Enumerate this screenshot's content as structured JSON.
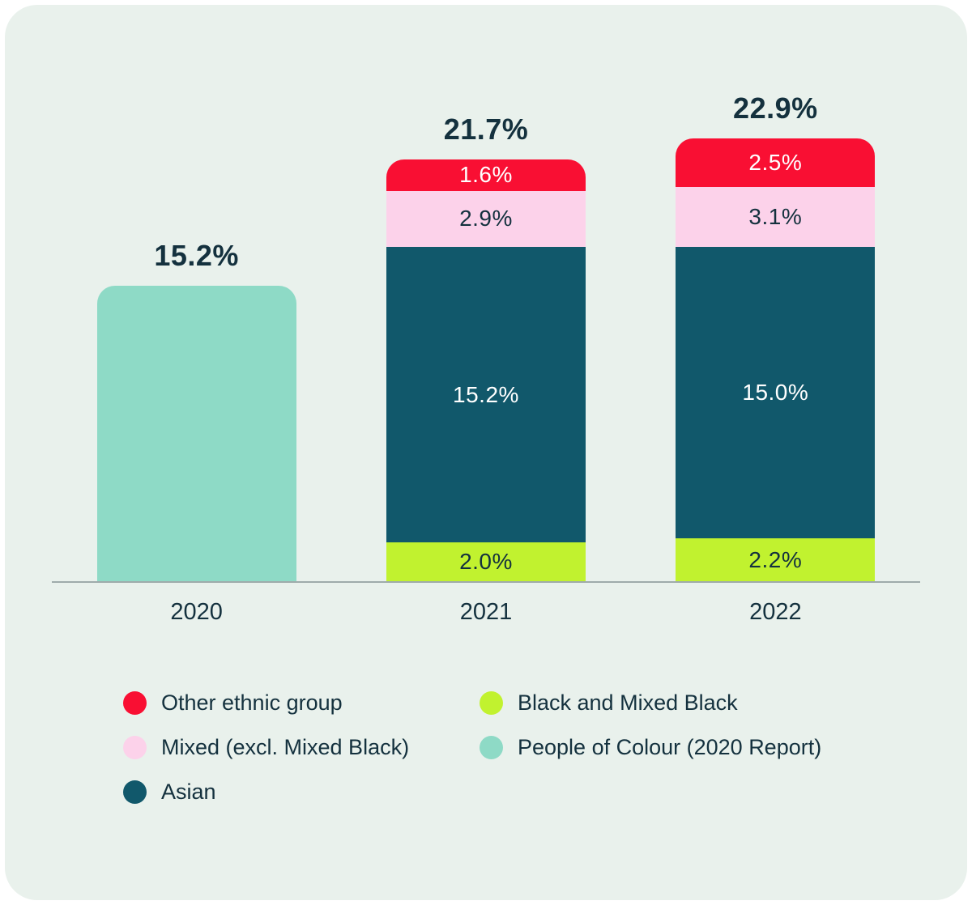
{
  "page": {
    "background_color": "#E9F1EC",
    "axis_color": "#9FABAB",
    "text_color": "#14313E"
  },
  "chart_data": {
    "type": "bar",
    "stacked": true,
    "title": "",
    "xlabel": "",
    "ylabel": "",
    "unit": "%",
    "ylim": [
      0,
      24
    ],
    "grid": false,
    "legend_position": "bottom",
    "categories": [
      "2020",
      "2021",
      "2022"
    ],
    "bars": [
      {
        "category": "2020",
        "total": 15.2,
        "total_label": "15.2%",
        "segments": [
          {
            "series": "People of Colour (2020 Report)",
            "value": 15.2,
            "label": "",
            "color": "#8EDAC6",
            "label_color": "dark"
          }
        ]
      },
      {
        "category": "2021",
        "total": 21.7,
        "total_label": "21.7%",
        "segments": [
          {
            "series": "Black and Mixed Black",
            "value": 2.0,
            "label": "2.0%",
            "color": "#C1F22F",
            "label_color": "dark"
          },
          {
            "series": "Asian",
            "value": 15.2,
            "label": "15.2%",
            "color": "#11586B",
            "label_color": "light"
          },
          {
            "series": "Mixed (excl. Mixed Black)",
            "value": 2.9,
            "label": "2.9%",
            "color": "#FCD2EA",
            "label_color": "dark"
          },
          {
            "series": "Other ethnic group",
            "value": 1.6,
            "label": "1.6%",
            "color": "#F90F33",
            "label_color": "light"
          }
        ]
      },
      {
        "category": "2022",
        "total": 22.9,
        "total_label": "22.9%",
        "segments": [
          {
            "series": "Black and Mixed Black",
            "value": 2.2,
            "label": "2.2%",
            "color": "#C1F22F",
            "label_color": "dark"
          },
          {
            "series": "Asian",
            "value": 15.0,
            "label": "15.0%",
            "color": "#11586B",
            "label_color": "light"
          },
          {
            "series": "Mixed (excl. Mixed Black)",
            "value": 3.1,
            "label": "3.1%",
            "color": "#FCD2EA",
            "label_color": "dark"
          },
          {
            "series": "Other ethnic group",
            "value": 2.5,
            "label": "2.5%",
            "color": "#F90F33",
            "label_color": "light"
          }
        ]
      }
    ],
    "legend": [
      {
        "label": "Other ethnic group",
        "color": "#F90F33"
      },
      {
        "label": "Black and Mixed Black",
        "color": "#C1F22F"
      },
      {
        "label": "Mixed (excl. Mixed Black)",
        "color": "#FCD2EA"
      },
      {
        "label": "People of Colour (2020 Report)",
        "color": "#8EDAC6"
      },
      {
        "label": "Asian",
        "color": "#11586B"
      }
    ]
  }
}
